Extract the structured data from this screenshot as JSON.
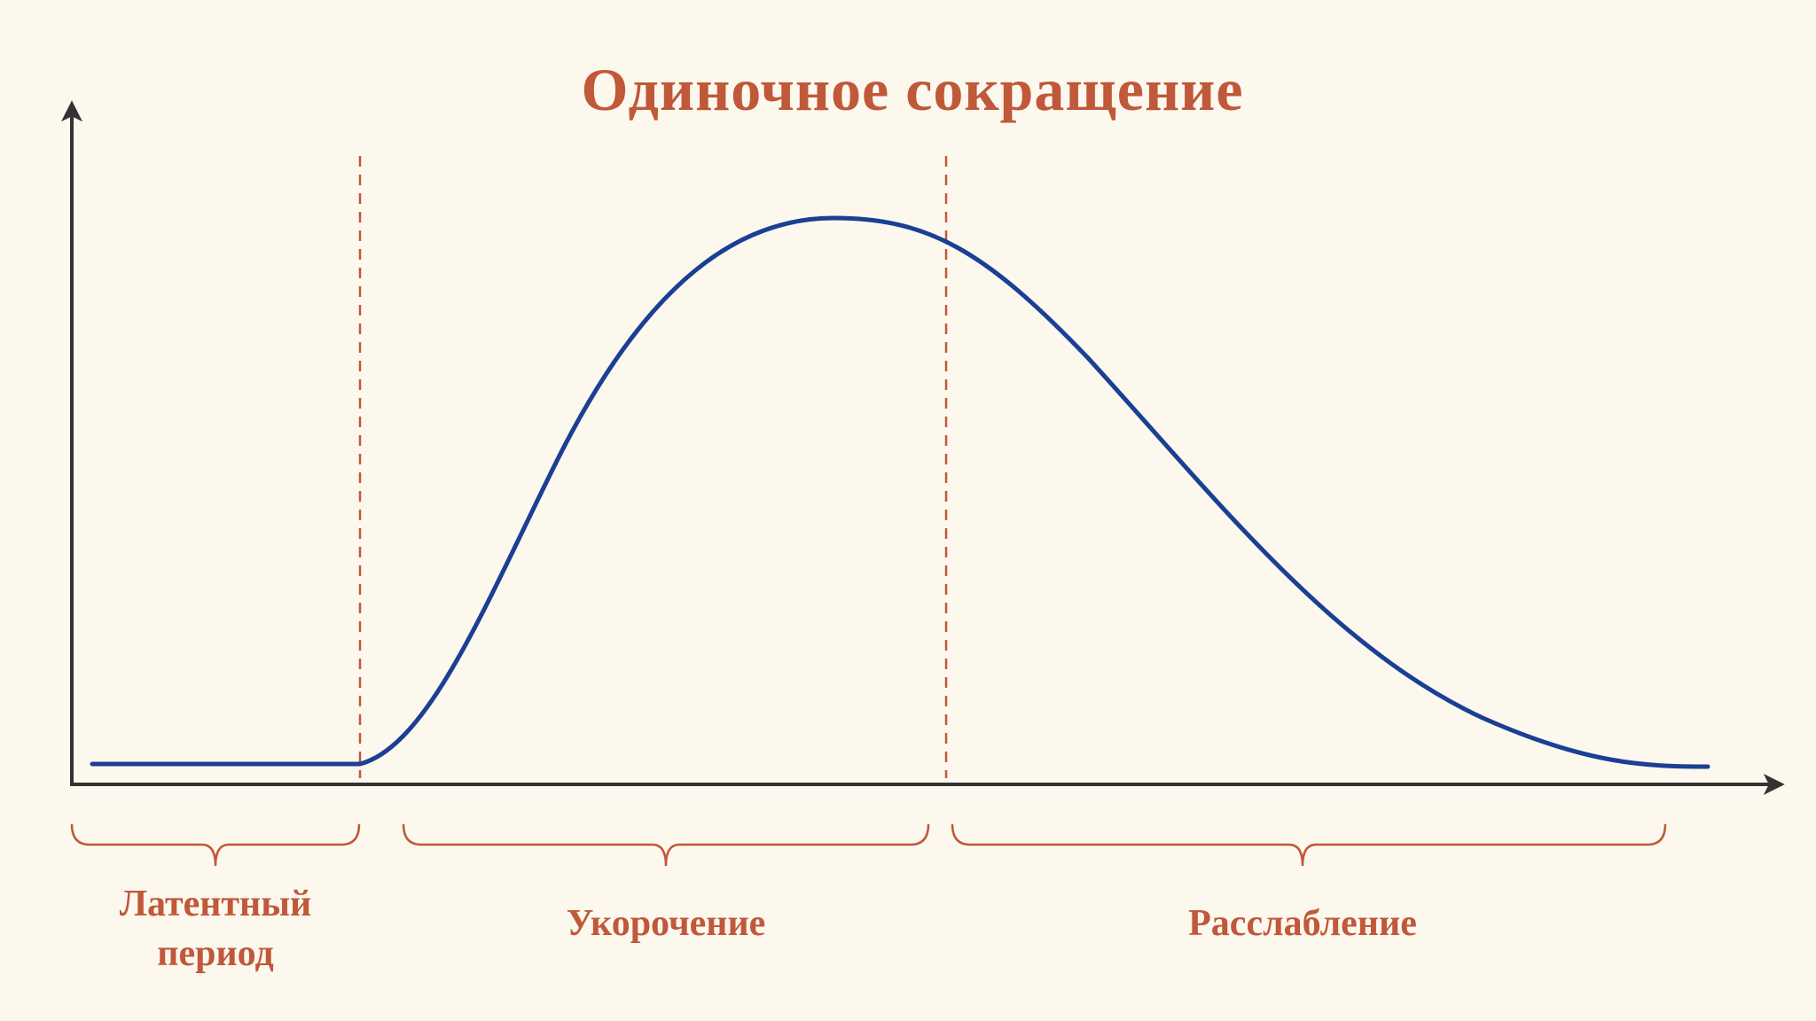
{
  "title": "Одиночное сокращение",
  "phases": [
    "Латентный период",
    "Укорочение",
    "Расслабление"
  ]
}
